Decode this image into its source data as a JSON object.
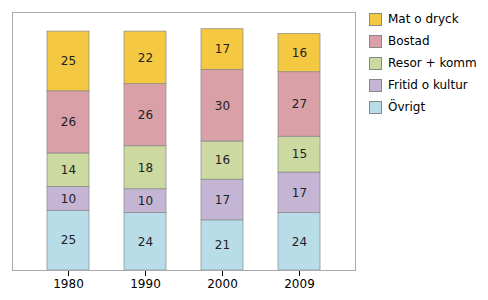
{
  "chart_data": {
    "type": "bar",
    "stacked": true,
    "categories": [
      "1980",
      "1990",
      "2000",
      "2009"
    ],
    "series": [
      {
        "name": "Övrigt",
        "color": "#b8dde8",
        "values": [
          25,
          24,
          21,
          24
        ]
      },
      {
        "name": "Fritid o kultur",
        "color": "#c4b5d4",
        "values": [
          10,
          10,
          17,
          17
        ]
      },
      {
        "name": "Resor + komm",
        "color": "#ccd9a0",
        "values": [
          14,
          18,
          16,
          15
        ]
      },
      {
        "name": "Bostad",
        "color": "#d9a0a8",
        "values": [
          26,
          26,
          30,
          27
        ]
      },
      {
        "name": "Mat o dryck",
        "color": "#f5c842",
        "values": [
          25,
          22,
          17,
          16
        ]
      }
    ],
    "ylim": [
      0,
      108
    ],
    "tick_labels": "x",
    "data_labels": true,
    "legend": "right",
    "grid": false
  }
}
